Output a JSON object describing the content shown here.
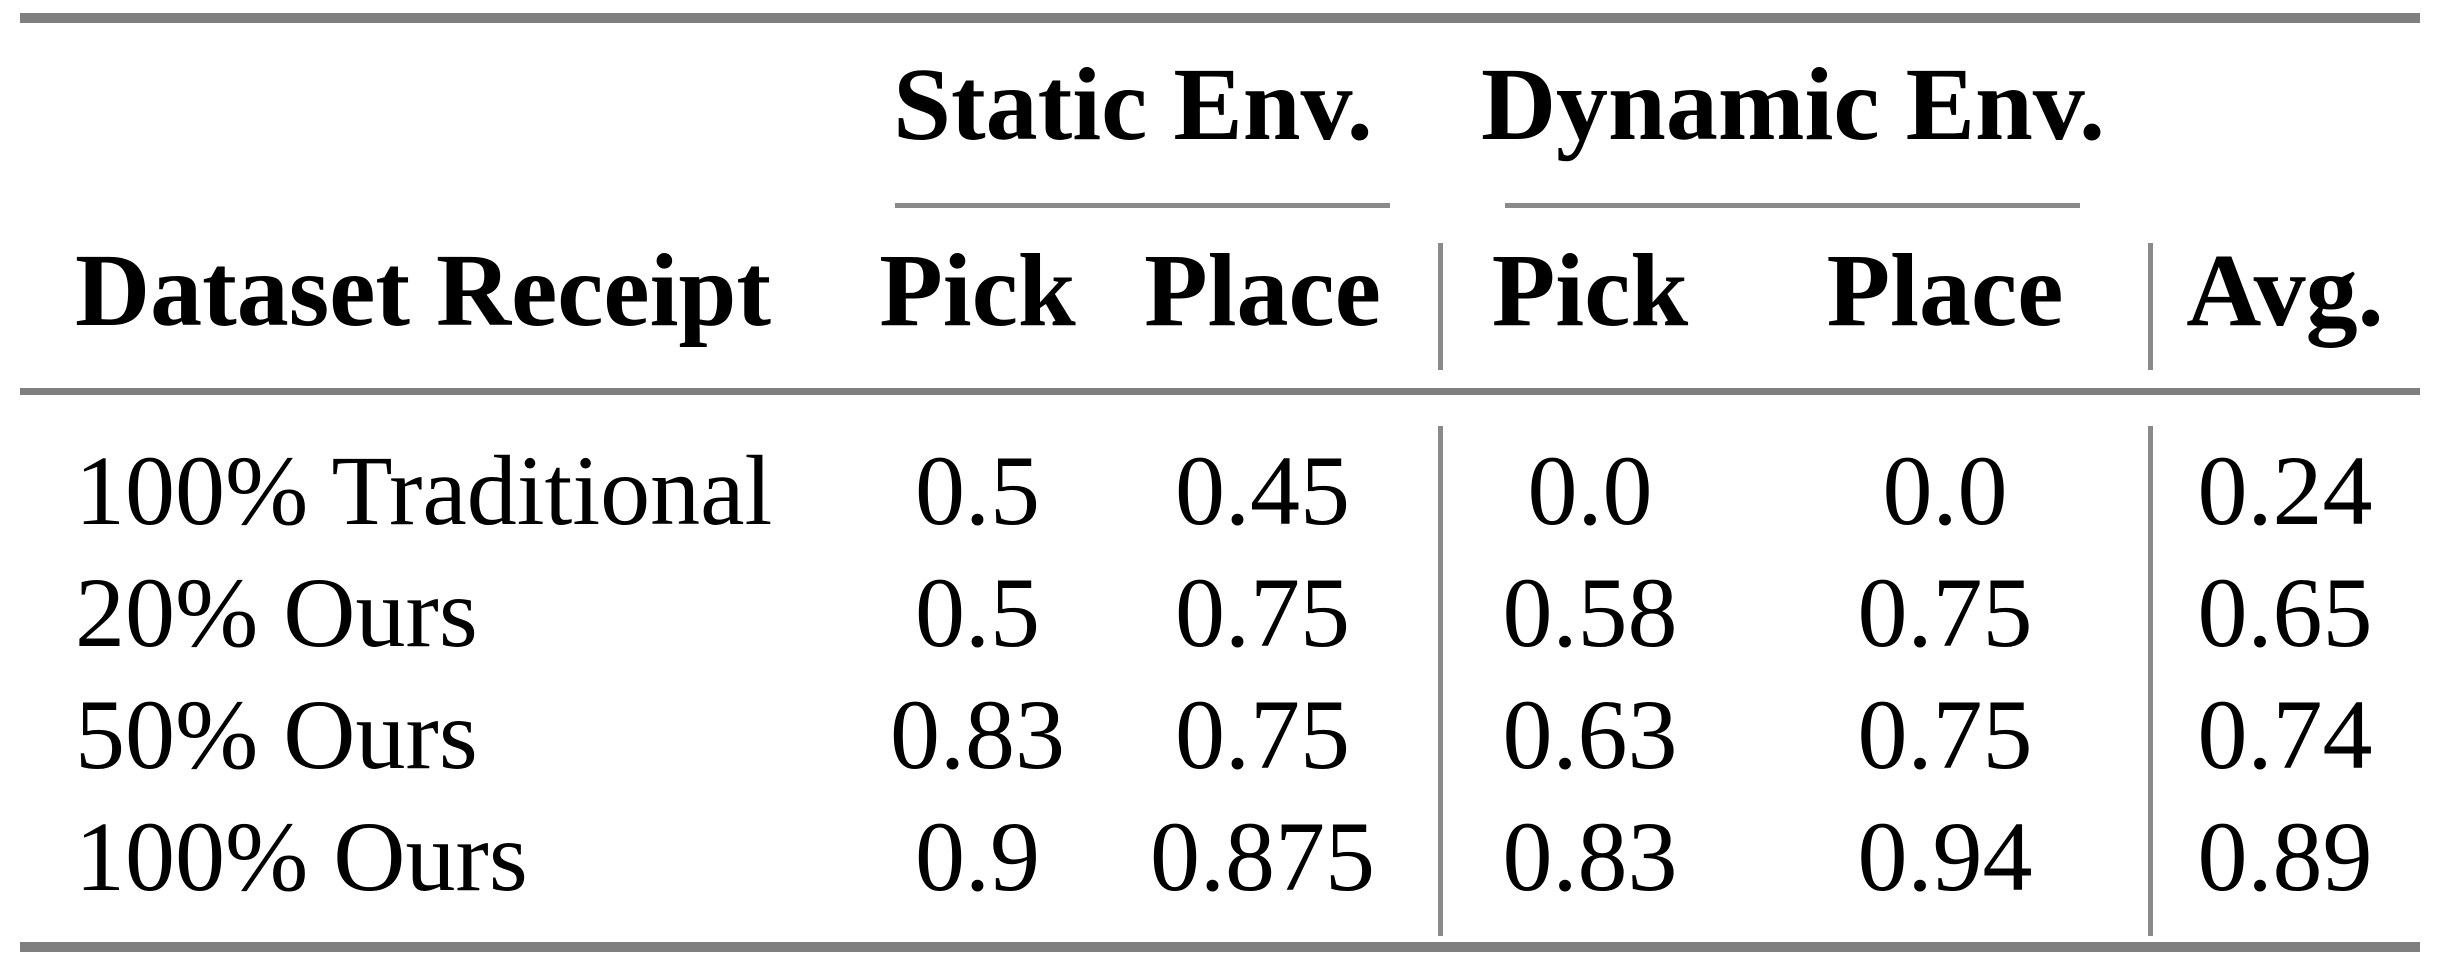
{
  "table": {
    "group_headers": [
      {
        "label": "Static Env."
      },
      {
        "label": "Dynamic Env."
      }
    ],
    "columns": [
      "Dataset Receipt",
      "Pick",
      "Place",
      "Pick",
      "Place",
      "Avg."
    ],
    "rows": [
      {
        "label": "100% Traditional",
        "static_pick": "0.5",
        "static_place": "0.45",
        "dynamic_pick": "0.0",
        "dynamic_place": "0.0",
        "avg": "0.24"
      },
      {
        "label": "20% Ours",
        "static_pick": "0.5",
        "static_place": "0.75",
        "dynamic_pick": "0.58",
        "dynamic_place": "0.75",
        "avg": "0.65"
      },
      {
        "label": "50% Ours",
        "static_pick": "0.83",
        "static_place": "0.75",
        "dynamic_pick": "0.63",
        "dynamic_place": "0.75",
        "avg": "0.74"
      },
      {
        "label": "100% Ours",
        "static_pick": "0.9",
        "static_place": "0.875",
        "dynamic_pick": "0.83",
        "dynamic_place": "0.94",
        "avg": "0.89"
      }
    ],
    "rule_color_thick": "#7f7f7f",
    "rule_color_thin": "#8a8a8a",
    "text_color": "#000000"
  }
}
